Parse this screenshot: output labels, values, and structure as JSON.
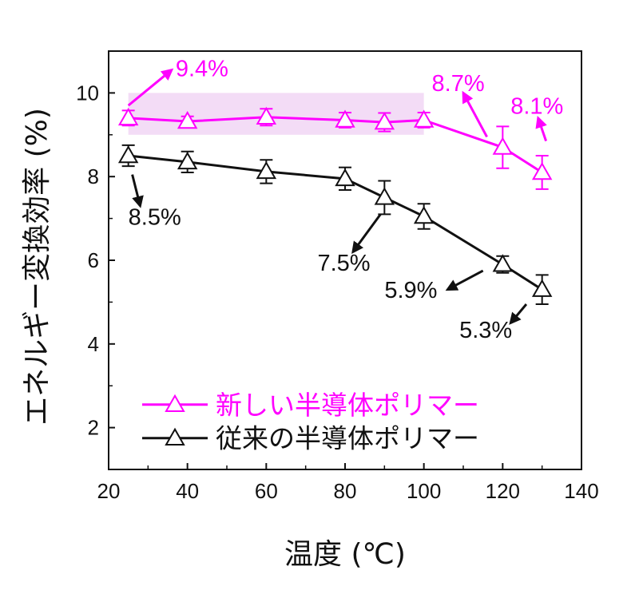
{
  "chart_data": {
    "type": "line",
    "xlabel": "温度 (℃)",
    "ylabel": "エネルギー変換効率 (%)",
    "xlim": [
      20,
      140
    ],
    "ylim": [
      1,
      11
    ],
    "xticks": [
      "20",
      "40",
      "60",
      "80",
      "100",
      "120",
      "140"
    ],
    "yticks": [
      "2",
      "4",
      "6",
      "8",
      "10"
    ],
    "grid": false,
    "legend_position": "bottom-left",
    "series": [
      {
        "name": "新しい半導体ポリマー",
        "color": "#ff00ff",
        "marker": "open-triangle",
        "x": [
          25,
          40,
          60,
          80,
          90,
          100,
          120,
          130
        ],
        "y": [
          9.4,
          9.32,
          9.42,
          9.35,
          9.3,
          9.35,
          8.7,
          8.1
        ],
        "yerr": [
          0.18,
          0.12,
          0.2,
          0.18,
          0.22,
          0.18,
          0.5,
          0.4
        ]
      },
      {
        "name": "従来の半導体ポリマー",
        "color": "#111111",
        "marker": "open-triangle",
        "x": [
          25,
          40,
          60,
          80,
          90,
          100,
          120,
          130
        ],
        "y": [
          8.5,
          8.35,
          8.12,
          7.95,
          7.5,
          7.05,
          5.9,
          5.3
        ],
        "yerr": [
          0.25,
          0.25,
          0.28,
          0.27,
          0.4,
          0.3,
          0.2,
          0.35
        ]
      }
    ],
    "highlight_band": {
      "x": [
        25,
        100
      ],
      "y": [
        9.0,
        10.0
      ],
      "color": "#f3dcf6"
    },
    "annotations": [
      {
        "text": "9.4%",
        "color": "#ff00ff",
        "from": [
          25,
          9.7
        ],
        "to": [
          36,
          10.55
        ],
        "label_at": [
          37,
          10.4
        ]
      },
      {
        "text": "8.7%",
        "color": "#ff00ff",
        "from": [
          116,
          8.95
        ],
        "to": [
          110,
          10.0
        ],
        "label_at": [
          102,
          10.05
        ]
      },
      {
        "text": "8.1%",
        "color": "#ff00ff",
        "from": [
          131,
          8.85
        ],
        "to": [
          129,
          9.4
        ],
        "label_at": [
          122,
          9.5
        ]
      },
      {
        "text": "8.5%",
        "color": "#111111",
        "from": [
          26,
          8.05
        ],
        "to": [
          28,
          7.3
        ],
        "label_at": [
          25,
          6.85
        ]
      },
      {
        "text": "7.5%",
        "color": "#111111",
        "from": [
          89,
          7.1
        ],
        "to": [
          82,
          6.2
        ],
        "label_at": [
          73,
          5.75
        ]
      },
      {
        "text": "5.9%",
        "color": "#111111",
        "from": [
          115,
          5.75
        ],
        "to": [
          106,
          5.3
        ],
        "label_at": [
          90,
          5.1
        ]
      },
      {
        "text": "5.3%",
        "color": "#111111",
        "from": [
          126,
          4.95
        ],
        "to": [
          122,
          4.5
        ],
        "label_at": [
          109,
          4.15
        ]
      }
    ]
  }
}
